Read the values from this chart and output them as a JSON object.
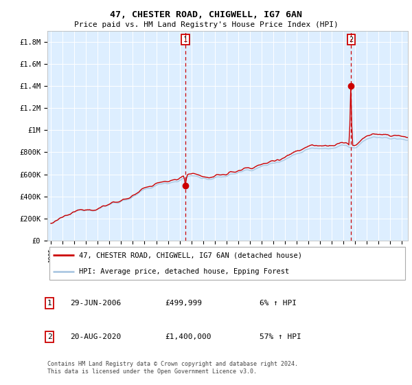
{
  "title": "47, CHESTER ROAD, CHIGWELL, IG7 6AN",
  "subtitle": "Price paid vs. HM Land Registry's House Price Index (HPI)",
  "hpi_label": "HPI: Average price, detached house, Epping Forest",
  "property_label": "47, CHESTER ROAD, CHIGWELL, IG7 6AN (detached house)",
  "sale1_date": "29-JUN-2006",
  "sale1_price": "£499,999",
  "sale1_hpi": "6% ↑ HPI",
  "sale2_date": "20-AUG-2020",
  "sale2_price": "£1,400,000",
  "sale2_hpi": "57% ↑ HPI",
  "footer": "Contains HM Land Registry data © Crown copyright and database right 2024.\nThis data is licensed under the Open Government Licence v3.0.",
  "ylim": [
    0,
    1900000
  ],
  "start_year": 1995,
  "end_year": 2025,
  "hpi_color": "#abc8e2",
  "property_color": "#cc0000",
  "marker_color": "#cc0000",
  "bg_color": "#ddeeff",
  "grid_color": "#ffffff",
  "vline_color": "#cc0000",
  "sale1_year": 2006.5,
  "sale2_year": 2020.65,
  "sale1_value": 499999,
  "sale2_value": 1400000
}
